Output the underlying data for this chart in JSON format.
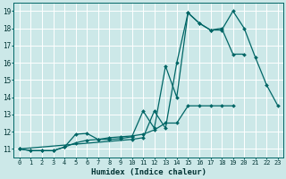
{
  "xlabel": "Humidex (Indice chaleur)",
  "bg_color": "#cce8e8",
  "grid_color": "#ffffff",
  "line_color": "#006666",
  "xlim": [
    -0.5,
    23.5
  ],
  "ylim": [
    10.5,
    19.5
  ],
  "xticks": [
    0,
    1,
    2,
    3,
    4,
    5,
    6,
    7,
    8,
    9,
    10,
    11,
    12,
    13,
    14,
    15,
    16,
    17,
    18,
    19,
    20,
    21,
    22,
    23
  ],
  "yticks": [
    11,
    12,
    13,
    14,
    15,
    16,
    17,
    18,
    19
  ],
  "series": [
    [
      11.0,
      10.9,
      10.9,
      10.9,
      11.1,
      11.35,
      11.5,
      11.55,
      11.65,
      11.7,
      11.75,
      11.85,
      12.1,
      12.5,
      12.5,
      13.5,
      13.5,
      13.5,
      13.5,
      13.5,
      null,
      null,
      null,
      null
    ],
    [
      11.0,
      10.9,
      10.9,
      10.9,
      11.1,
      11.85,
      11.9,
      11.55,
      11.55,
      11.6,
      11.7,
      13.2,
      12.2,
      15.8,
      14.0,
      18.9,
      18.3,
      17.9,
      18.0,
      16.5,
      16.5,
      null,
      null,
      null
    ],
    [
      11.0,
      null,
      null,
      null,
      null,
      null,
      null,
      null,
      null,
      null,
      11.55,
      11.65,
      13.2,
      12.2,
      16.0,
      18.9,
      18.3,
      17.9,
      17.9,
      19.0,
      18.0,
      16.3,
      14.7,
      13.5
    ]
  ]
}
